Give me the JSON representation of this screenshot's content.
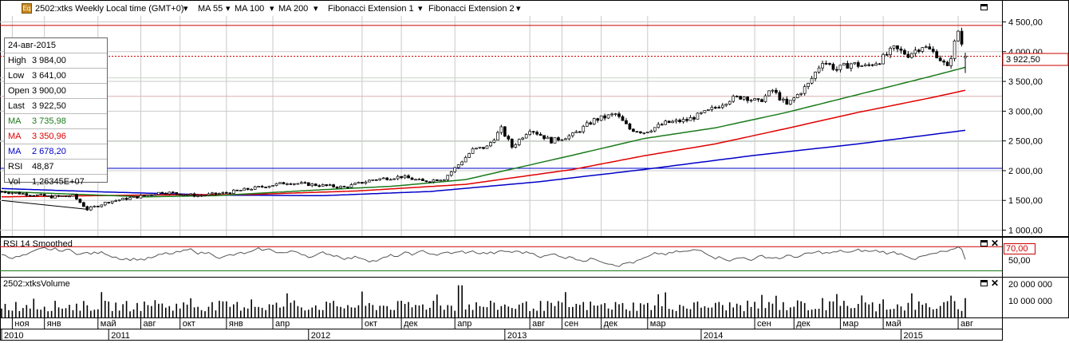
{
  "header": {
    "symbol": "2502:xtks Weekly Local time (GMT+0)",
    "ma55": "MA 55",
    "ma100": "MA 100",
    "ma200": "MA 200",
    "fib1": "Fibonacci Extension 1",
    "fib2": "Fibonacci Extension 2",
    "icon": "Eq"
  },
  "colors": {
    "ma55": "#1a7a1a",
    "ma100": "#e00000",
    "ma200": "#0000c8",
    "candle": "#000000",
    "level_red": "#cc0000",
    "fib_blue": "#0000c8",
    "rsi_line": "#555555",
    "volume": "#000000"
  },
  "infobox": {
    "date": "24-авг-2015",
    "rows": [
      {
        "label": "High",
        "value": "3 984,00",
        "color": "#000000"
      },
      {
        "label": "Low",
        "value": "3 641,00",
        "color": "#000000"
      },
      {
        "label": "Open",
        "value": "3 900,00",
        "color": "#000000"
      },
      {
        "label": "Last",
        "value": "3 922,50",
        "color": "#000000"
      },
      {
        "label": "MA",
        "value": "3 735,98",
        "color": "#1a7a1a"
      },
      {
        "label": "MA",
        "value": "3 350,96",
        "color": "#e00000"
      },
      {
        "label": "MA",
        "value": "2 678,20",
        "color": "#0000c8"
      },
      {
        "label": "RSI",
        "value": "48,87",
        "color": "#000000"
      },
      {
        "label": "Vol",
        "value": "1,26345E+07",
        "color": "#000000"
      }
    ]
  },
  "rsi_panel": {
    "title": "RSI 14 Smoothed",
    "level_label": "70,00",
    "tick_label": "50,00"
  },
  "volume_panel": {
    "title": "2502:xtksVolume",
    "ticks": [
      "20 000 000",
      "10 000 000"
    ]
  },
  "last_price_label": "3 922,50",
  "chart_data": {
    "type": "candlestick",
    "ylim": [
      900,
      4600
    ],
    "yticks": [
      1000,
      1500,
      2000,
      2500,
      3000,
      3500,
      4000,
      4500
    ],
    "ytick_labels": [
      "1 000,00",
      "1 500,00",
      "2 000,00",
      "2 500,00",
      "3 000,00",
      "3 500,00",
      "4 000,00",
      "4 500,00"
    ],
    "levels": [
      {
        "value": 4440,
        "style": "solid",
        "color": "#cc0000"
      },
      {
        "value": 3922.5,
        "style": "dotted",
        "color": "#cc0000"
      },
      {
        "value": 3560,
        "style": "solid",
        "color": "#c8d8c8"
      },
      {
        "value": 3250,
        "style": "solid",
        "color": "#d8b0b0"
      },
      {
        "value": 2490,
        "style": "solid",
        "color": "#c8d8c8"
      },
      {
        "value": 2040,
        "style": "solid",
        "color": "#0000c8"
      }
    ],
    "anchors": [
      [
        0,
        1650
      ],
      [
        8,
        1600
      ],
      [
        14,
        1560
      ],
      [
        20,
        1580
      ],
      [
        24,
        1350
      ],
      [
        30,
        1480
      ],
      [
        38,
        1560
      ],
      [
        45,
        1640
      ],
      [
        55,
        1580
      ],
      [
        62,
        1620
      ],
      [
        70,
        1700
      ],
      [
        80,
        1800
      ],
      [
        88,
        1760
      ],
      [
        96,
        1720
      ],
      [
        104,
        1850
      ],
      [
        112,
        1900
      ],
      [
        118,
        1820
      ],
      [
        124,
        1870
      ],
      [
        128,
        2100
      ],
      [
        132,
        2350
      ],
      [
        136,
        2400
      ],
      [
        140,
        2700
      ],
      [
        143,
        2400
      ],
      [
        148,
        2700
      ],
      [
        154,
        2500
      ],
      [
        160,
        2600
      ],
      [
        166,
        2850
      ],
      [
        172,
        2950
      ],
      [
        176,
        2700
      ],
      [
        180,
        2650
      ],
      [
        186,
        2800
      ],
      [
        192,
        2850
      ],
      [
        198,
        3000
      ],
      [
        204,
        3200
      ],
      [
        208,
        3250
      ],
      [
        212,
        3150
      ],
      [
        216,
        3350
      ],
      [
        220,
        3100
      ],
      [
        226,
        3450
      ],
      [
        230,
        3850
      ],
      [
        234,
        3700
      ],
      [
        238,
        3800
      ],
      [
        242,
        3750
      ],
      [
        246,
        3850
      ],
      [
        250,
        4050
      ],
      [
        254,
        3950
      ],
      [
        258,
        4100
      ],
      [
        262,
        3950
      ],
      [
        265,
        3720
      ],
      [
        268,
        4350
      ],
      [
        270,
        3920
      ]
    ],
    "ma55_anchors": [
      [
        0,
        1650
      ],
      [
        40,
        1560
      ],
      [
        60,
        1580
      ],
      [
        90,
        1680
      ],
      [
        110,
        1740
      ],
      [
        130,
        1850
      ],
      [
        160,
        2260
      ],
      [
        180,
        2540
      ],
      [
        200,
        2720
      ],
      [
        220,
        2980
      ],
      [
        240,
        3280
      ],
      [
        260,
        3580
      ],
      [
        270,
        3736
      ]
    ],
    "ma100_anchors": [
      [
        0,
        1560
      ],
      [
        40,
        1590
      ],
      [
        70,
        1600
      ],
      [
        100,
        1660
      ],
      [
        130,
        1770
      ],
      [
        160,
        2020
      ],
      [
        180,
        2250
      ],
      [
        200,
        2450
      ],
      [
        220,
        2710
      ],
      [
        240,
        2980
      ],
      [
        260,
        3220
      ],
      [
        270,
        3351
      ]
    ],
    "ma200_anchors": [
      [
        0,
        1700
      ],
      [
        30,
        1640
      ],
      [
        60,
        1590
      ],
      [
        90,
        1580
      ],
      [
        120,
        1650
      ],
      [
        150,
        1810
      ],
      [
        180,
        2020
      ],
      [
        210,
        2250
      ],
      [
        240,
        2450
      ],
      [
        270,
        2678
      ]
    ],
    "fib_line": [
      [
        0,
        1500
      ],
      [
        24,
        1350
      ]
    ],
    "x_month_labels": [
      {
        "i": 3,
        "t": "ноя"
      },
      {
        "i": 12,
        "t": "янв"
      },
      {
        "i": 27,
        "t": "май"
      },
      {
        "i": 39,
        "t": "авг"
      },
      {
        "i": 50,
        "t": "окт"
      },
      {
        "i": 63,
        "t": "янв"
      },
      {
        "i": 76,
        "t": "апр"
      },
      {
        "i": 101,
        "t": "окт"
      },
      {
        "i": 112,
        "t": "дек"
      },
      {
        "i": 127,
        "t": "апр"
      },
      {
        "i": 148,
        "t": "авг"
      },
      {
        "i": 157,
        "t": "сен"
      },
      {
        "i": 168,
        "t": "дек"
      },
      {
        "i": 181,
        "t": "мар"
      },
      {
        "i": 211,
        "t": "сен"
      },
      {
        "i": 222,
        "t": "дек"
      },
      {
        "i": 235,
        "t": "мар"
      },
      {
        "i": 247,
        "t": "май"
      },
      {
        "i": 268,
        "t": "авг"
      }
    ],
    "x_year_labels": [
      {
        "i": 0,
        "t": "2010"
      },
      {
        "i": 30,
        "t": "2011"
      },
      {
        "i": 86,
        "t": "2012"
      },
      {
        "i": 141,
        "t": "2013"
      },
      {
        "i": 196,
        "t": "2014"
      },
      {
        "i": 252,
        "t": "2015"
      }
    ],
    "rsi": {
      "ylim": [
        20,
        85
      ],
      "level": 70,
      "tick": 50
    },
    "volume": {
      "ylim": [
        0,
        25000000
      ],
      "ticks": [
        20000000,
        10000000
      ]
    },
    "last": {
      "high": 3984,
      "low": 3641,
      "open": 3900,
      "close": 3922.5,
      "rsi": 48.87,
      "volume": 12634500
    }
  }
}
